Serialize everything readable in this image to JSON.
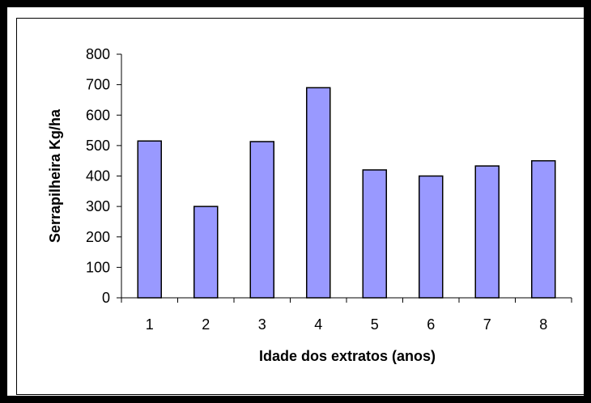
{
  "chart_data": {
    "type": "bar",
    "title": "",
    "xlabel": "Idade dos extratos (anos)",
    "ylabel": "Serrapilheira Kg/ha",
    "categories": [
      "1",
      "2",
      "3",
      "4",
      "5",
      "6",
      "7",
      "8"
    ],
    "values": [
      515,
      300,
      513,
      690,
      420,
      400,
      433,
      450
    ],
    "ylim": [
      0,
      800
    ],
    "yticks": [
      0,
      100,
      200,
      300,
      400,
      500,
      600,
      700,
      800
    ],
    "grid": false,
    "legend": "none",
    "colors": {
      "bar_fill": "#9999ff",
      "bar_stroke": "#000000"
    }
  }
}
